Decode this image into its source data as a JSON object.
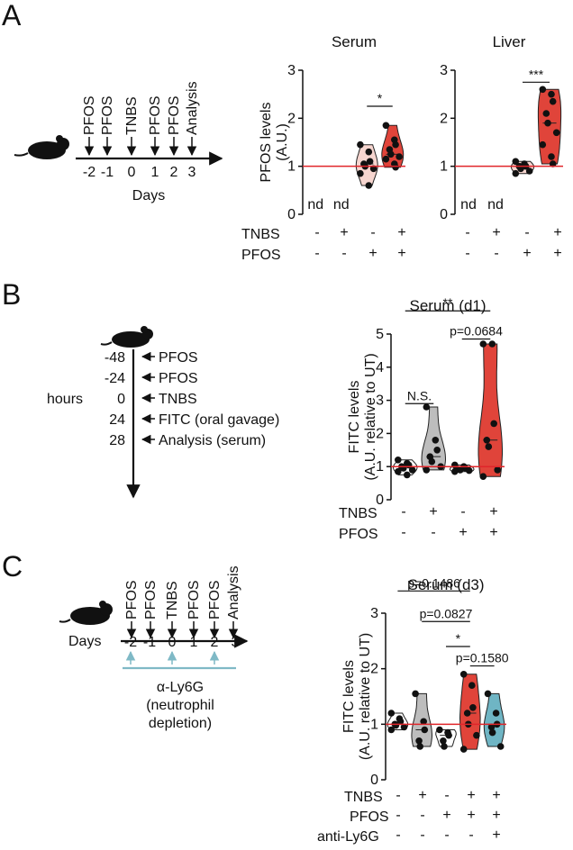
{
  "panels": {
    "A": {
      "letter": "A",
      "timeline": {
        "events": [
          "PFOS",
          "PFOS",
          "TNBS",
          "PFOS",
          "PFOS",
          "Analysis"
        ],
        "ticks": [
          "-2",
          "-1",
          "0",
          "1",
          "2",
          "3"
        ],
        "axis_label": "Days"
      },
      "row_labels": [
        "TNBS",
        "PFOS"
      ],
      "row_signs": [
        [
          "-",
          "+",
          "-",
          "+"
        ],
        [
          "-",
          "-",
          "+",
          "+"
        ]
      ]
    },
    "B": {
      "letter": "B",
      "timeline": {
        "hours": [
          "-48",
          "-24",
          "0",
          "24",
          "28"
        ],
        "events": [
          "PFOS",
          "PFOS",
          "TNBS",
          "FITC (oral gavage)",
          "Analysis (serum)"
        ],
        "axis_label": "hours"
      },
      "row_labels": [
        "TNBS",
        "PFOS"
      ],
      "row_signs": [
        [
          "-",
          "+",
          "-",
          "+"
        ],
        [
          "-",
          "-",
          "+",
          "+"
        ]
      ]
    },
    "C": {
      "letter": "C",
      "timeline": {
        "events": [
          "PFOS",
          "PFOS",
          "TNBS",
          "PFOS",
          "PFOS",
          "Analysis"
        ],
        "ticks": [
          "-2",
          "-1",
          "0",
          "1",
          "2",
          "3"
        ],
        "axis_label": "Days",
        "treatment": [
          "α-Ly6G",
          "(neutrophil",
          "depletion)"
        ]
      },
      "row_labels": [
        "TNBS",
        "PFOS",
        "anti-Ly6G"
      ],
      "row_signs": [
        [
          "-",
          "+",
          "-",
          "+",
          "+"
        ],
        [
          "-",
          "-",
          "+",
          "+",
          "+"
        ],
        [
          "-",
          "-",
          "-",
          "-",
          "+"
        ]
      ]
    }
  },
  "chart_data": [
    {
      "id": "A_serum",
      "type": "violin",
      "title": "Serum",
      "ylabel": "PFOS levels",
      "ylabel2": "(A.U.)",
      "ylim": [
        0,
        3
      ],
      "yticks": [
        "0",
        "1",
        "2",
        "3"
      ],
      "reference_line": 1,
      "groups": [
        {
          "nd": true,
          "label": "nd",
          "color": "#ffffff",
          "points": []
        },
        {
          "nd": true,
          "label": "nd",
          "color": "#ffffff",
          "points": []
        },
        {
          "color": "#f6d5cf",
          "points": [
            1.45,
            1.3,
            1.1,
            1.05,
            1.0,
            0.95,
            0.85,
            0.6
          ]
        },
        {
          "color": "#e0443a",
          "points": [
            1.85,
            1.55,
            1.45,
            1.35,
            1.25,
            1.2,
            1.15,
            1.05,
            0.98
          ]
        }
      ],
      "brackets": [
        {
          "from": 2,
          "to": 3,
          "y": 2.25,
          "label": "*"
        }
      ]
    },
    {
      "id": "A_liver",
      "type": "violin",
      "title": "Liver",
      "ylabel": "",
      "ylabel2": "",
      "ylim": [
        0,
        3
      ],
      "yticks": [
        "0",
        "1",
        "2",
        "3"
      ],
      "reference_line": 1,
      "groups": [
        {
          "nd": true,
          "label": "nd",
          "color": "#ffffff",
          "points": []
        },
        {
          "nd": true,
          "label": "nd",
          "color": "#ffffff",
          "points": []
        },
        {
          "color": "#f6d5cf",
          "points": [
            1.1,
            1.05,
            1.0,
            1.0,
            0.95,
            0.9,
            0.85
          ]
        },
        {
          "color": "#e0443a",
          "points": [
            2.6,
            2.5,
            2.35,
            2.1,
            1.9,
            1.7,
            1.45,
            1.2,
            1.05
          ]
        }
      ],
      "brackets": [
        {
          "from": 2,
          "to": 3,
          "y": 2.75,
          "label": "***"
        }
      ]
    },
    {
      "id": "B",
      "type": "violin",
      "title": "Serum (d1)",
      "ylabel": "FITC levels",
      "ylabel2": "(A.U. relative to UT)",
      "ylim": [
        0,
        5
      ],
      "yticks": [
        "0",
        "1",
        "2",
        "3",
        "4",
        "5"
      ],
      "reference_line": 1,
      "groups": [
        {
          "color": "#ffffff",
          "points": [
            1.2,
            1.1,
            1.05,
            1.0,
            0.95,
            0.9,
            0.85,
            0.75
          ]
        },
        {
          "color": "#bdbdbd",
          "points": [
            2.8,
            1.8,
            1.5,
            1.3,
            1.15,
            1.0,
            0.9
          ]
        },
        {
          "color": "#ffffff",
          "points": [
            1.05,
            1.0,
            0.95,
            0.92,
            0.9,
            0.88,
            0.85
          ]
        },
        {
          "color": "#e0443a",
          "points": [
            4.7,
            4.7,
            2.3,
            1.8,
            1.6,
            0.9,
            0.7
          ]
        }
      ],
      "brackets": [
        {
          "from": 0,
          "to": 1,
          "y": 2.9,
          "label": "N.S."
        },
        {
          "from": 2,
          "to": 3,
          "y": 4.85,
          "label": "p=0.0684"
        },
        {
          "from": 0,
          "to": 3,
          "y": 5.7,
          "label": "**"
        }
      ]
    },
    {
      "id": "C",
      "type": "violin",
      "title": "Serum (d3)",
      "ylabel": "FITC levels",
      "ylabel2": "(A.U. relative to UT)",
      "ylim": [
        0,
        3
      ],
      "yticks": [
        "0",
        "1",
        "2",
        "3"
      ],
      "reference_line": 1,
      "groups": [
        {
          "color": "#ffffff",
          "points": [
            1.2,
            1.1,
            1.05,
            1.0,
            0.98,
            0.95,
            0.9
          ]
        },
        {
          "color": "#bdbdbd",
          "points": [
            1.55,
            1.05,
            0.9,
            0.7,
            0.6
          ]
        },
        {
          "color": "#ffffff",
          "points": [
            0.9,
            0.85,
            0.8,
            0.7,
            0.6
          ]
        },
        {
          "color": "#e0443a",
          "points": [
            1.9,
            1.7,
            1.3,
            1.2,
            1.0,
            0.8,
            0.55
          ]
        },
        {
          "color": "#6fb5c4",
          "points": [
            1.55,
            1.2,
            1.0,
            0.95,
            0.85,
            0.6
          ]
        }
      ],
      "brackets": [
        {
          "from": 3,
          "to": 4,
          "y": 2.05,
          "label": "p=0.1580"
        },
        {
          "from": 2,
          "to": 3,
          "y": 2.4,
          "label": "*"
        },
        {
          "from": 1,
          "to": 3,
          "y": 2.85,
          "label": "p=0.0827"
        },
        {
          "from": 0,
          "to": 3,
          "y": 3.4,
          "label": "p=0.1486"
        }
      ]
    }
  ]
}
